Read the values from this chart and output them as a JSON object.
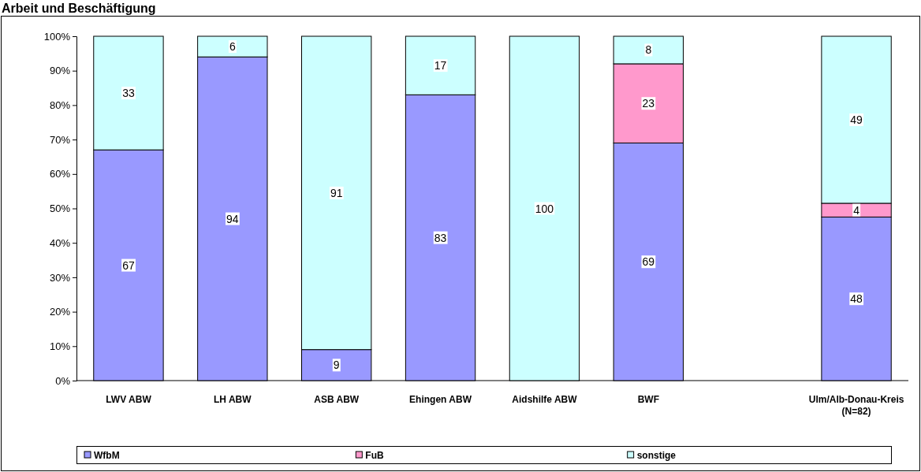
{
  "chart_data": {
    "type": "bar",
    "title": "Arbeit und Beschäftigung",
    "stacked": true,
    "categories": [
      "LWV ABW",
      "LH ABW",
      "ASB ABW",
      "Ehingen ABW",
      "Aidshilfe ABW",
      "BWF",
      null,
      "Ulm/Alb-Donau-Kreis (N=82)"
    ],
    "series": [
      {
        "name": "WfbM",
        "color": "#9999ff",
        "values": [
          67,
          94,
          9,
          83,
          0,
          69,
          null,
          47.5
        ],
        "value_labels": [
          "67",
          "94",
          "9",
          "83",
          null,
          "69",
          null,
          "48"
        ]
      },
      {
        "name": "FuB",
        "color": "#ff99cc",
        "values": [
          0,
          0,
          0,
          0,
          0,
          23,
          null,
          4
        ],
        "value_labels": [
          null,
          null,
          null,
          null,
          null,
          "23",
          null,
          "4"
        ]
      },
      {
        "name": "sonstige",
        "color": "#ccffff",
        "values": [
          33,
          6,
          91,
          17,
          100,
          8,
          null,
          48.5
        ],
        "value_labels": [
          "33",
          "6",
          "91",
          "17",
          "100",
          "8",
          null,
          "49"
        ]
      }
    ],
    "ylim": [
      0,
      100
    ],
    "yticks": [
      {
        "value": 0,
        "label": "0%"
      },
      {
        "value": 10,
        "label": "10%"
      },
      {
        "value": 20,
        "label": "20%"
      },
      {
        "value": 30,
        "label": "30%"
      },
      {
        "value": 40,
        "label": "40%"
      },
      {
        "value": 50,
        "label": "50%"
      },
      {
        "value": 60,
        "label": "60%"
      },
      {
        "value": 70,
        "label": "70%"
      },
      {
        "value": 80,
        "label": "80%"
      },
      {
        "value": 90,
        "label": "90%"
      },
      {
        "value": 100,
        "label": "100%"
      }
    ],
    "grid": false,
    "legend": "bottom"
  }
}
